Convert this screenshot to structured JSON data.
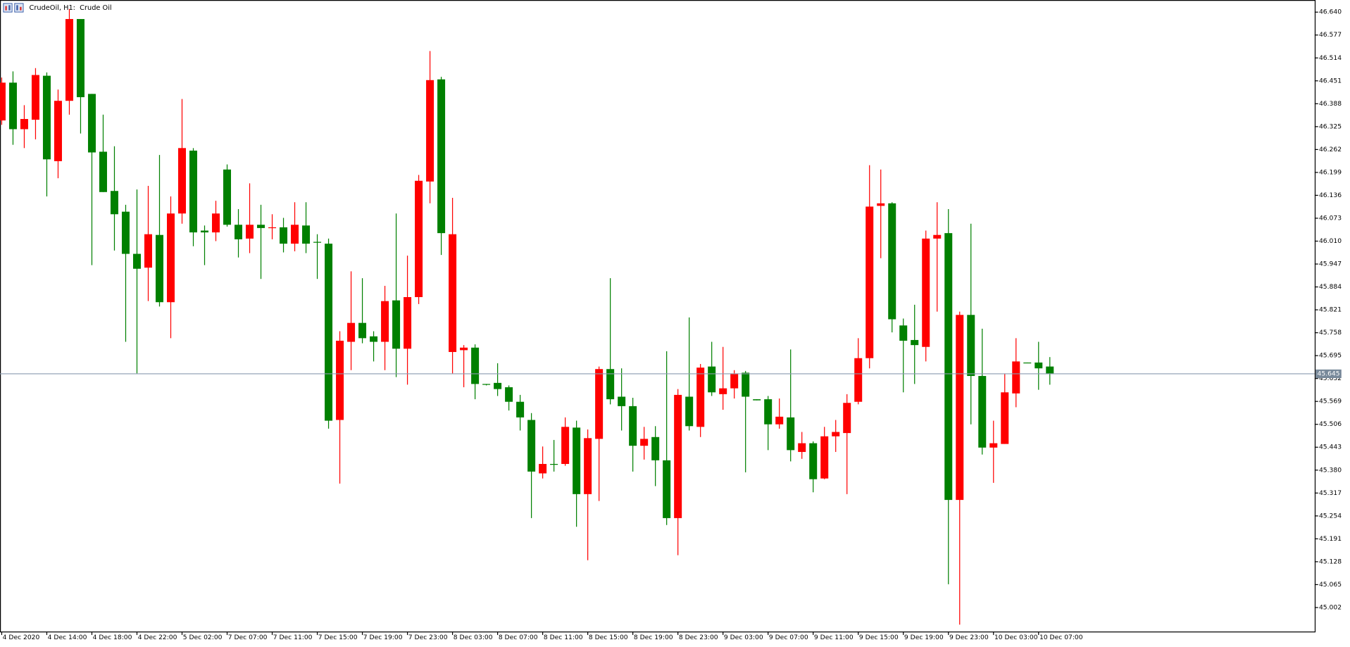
{
  "chart_data": {
    "type": "candlestick",
    "title": "CrudeOil, H1:  Crude Oil",
    "up_color": "#008000",
    "down_color": "#ff0000",
    "categories": [
      "4 Dec 2020",
      null,
      null,
      null,
      "4 Dec 14:00",
      null,
      null,
      null,
      "4 Dec 18:00",
      null,
      null,
      null,
      "4 Dec 22:00",
      null,
      null,
      null,
      "5 Dec 02:00",
      null,
      null,
      null,
      "7 Dec 07:00",
      null,
      null,
      null,
      "7 Dec 11:00",
      null,
      null,
      null,
      "7 Dec 15:00",
      null,
      null,
      null,
      "7 Dec 19:00",
      null,
      null,
      null,
      "7 Dec 23:00",
      null,
      null,
      null,
      "8 Dec 03:00",
      null,
      null,
      null,
      "8 Dec 07:00",
      null,
      null,
      null,
      "8 Dec 11:00",
      null,
      null,
      null,
      "8 Dec 15:00",
      null,
      null,
      null,
      "8 Dec 19:00",
      null,
      null,
      null,
      "8 Dec 23:00",
      null,
      null,
      null,
      "9 Dec 03:00",
      null,
      null,
      null,
      "9 Dec 07:00",
      null,
      null,
      null,
      "9 Dec 11:00",
      null,
      null,
      null,
      "9 Dec 15:00",
      null,
      null,
      null,
      "9 Dec 19:00",
      null,
      null,
      null,
      "9 Dec 23:00",
      null,
      null,
      null,
      "10 Dec 03:00",
      null,
      null,
      null,
      "10 Dec 07:00",
      null
    ],
    "open": [
      46.446,
      46.318,
      46.346,
      46.467,
      46.235,
      46.396,
      46.621,
      46.406,
      46.254,
      46.145,
      46.084,
      45.975,
      45.934,
      46.029,
      45.842,
      46.086,
      46.266,
      46.034,
      46.034,
      46.086,
      46.055,
      46.015,
      46.055,
      46.046,
      46.048,
      46.003,
      46.055,
      46.003,
      46.006,
      45.516,
      45.736,
      45.785,
      45.743,
      45.733,
      45.845,
      45.714,
      45.856,
      46.176,
      46.453,
      46.032,
      46.029,
      45.717,
      45.617,
      45.615,
      45.603,
      45.568,
      45.525,
      45.376,
      45.397,
      45.395,
      45.499,
      45.314,
      45.468,
      45.658,
      45.575,
      45.556,
      45.447,
      45.466,
      45.407,
      45.248,
      45.587,
      45.501,
      45.662,
      45.594,
      45.605,
      45.646,
      45.582,
      45.572,
      45.506,
      45.527,
      45.435,
      45.454,
      45.355,
      45.473,
      45.485,
      45.565,
      45.688,
      46.105,
      46.114,
      45.795,
      45.736,
      45.724,
      46.017,
      46.027,
      45.298,
      45.807,
      45.639,
      45.442,
      45.454,
      45.594,
      45.679,
      45.674,
      45.66,
      45.646
    ],
    "high": [
      46.46,
      46.477,
      46.384,
      46.486,
      46.474,
      46.427,
      46.649,
      46.621,
      46.415,
      46.358,
      46.271,
      46.11,
      46.152,
      46.162,
      46.247,
      46.133,
      46.401,
      46.266,
      46.053,
      46.121,
      46.221,
      46.098,
      46.169,
      46.11,
      46.084,
      46.074,
      46.117,
      46.117,
      46.029,
      46.017,
      45.762,
      45.927,
      45.908,
      45.762,
      45.887,
      46.086,
      45.97,
      46.192,
      46.533,
      46.462,
      46.129,
      45.724,
      45.726,
      45.617,
      45.674,
      45.613,
      45.587,
      45.537,
      45.445,
      45.463,
      45.525,
      45.516,
      45.492,
      45.665,
      45.908,
      45.66,
      45.579,
      45.499,
      45.501,
      45.707,
      45.603,
      45.8,
      45.672,
      45.733,
      45.719,
      45.655,
      45.653,
      45.575,
      45.584,
      45.577,
      45.712,
      45.485,
      45.459,
      45.499,
      45.518,
      45.589,
      45.743,
      46.219,
      46.207,
      46.117,
      45.797,
      45.835,
      46.039,
      46.117,
      46.098,
      45.816,
      46.058,
      45.769,
      45.516,
      45.646,
      45.743,
      45.676,
      45.733,
      45.691
    ],
    "low": [
      46.33,
      46.275,
      46.266,
      46.29,
      46.133,
      46.183,
      46.358,
      46.306,
      45.944,
      46.145,
      45.984,
      45.733,
      45.646,
      45.845,
      45.83,
      45.743,
      46.058,
      45.996,
      45.944,
      46.01,
      46.05,
      45.965,
      45.977,
      45.906,
      46.015,
      45.979,
      45.982,
      45.977,
      45.906,
      45.494,
      45.343,
      45.655,
      45.729,
      45.679,
      45.655,
      45.636,
      45.615,
      45.837,
      46.114,
      45.972,
      45.646,
      45.608,
      45.575,
      45.613,
      45.584,
      45.544,
      45.489,
      45.248,
      45.357,
      45.376,
      45.392,
      45.224,
      45.132,
      45.295,
      45.561,
      45.489,
      45.376,
      45.409,
      45.336,
      45.229,
      45.146,
      45.489,
      45.471,
      45.584,
      45.546,
      45.577,
      45.374,
      45.572,
      45.435,
      45.494,
      45.404,
      45.411,
      45.319,
      45.355,
      45.43,
      45.314,
      45.561,
      45.66,
      45.963,
      45.759,
      45.594,
      45.617,
      45.679,
      45.816,
      45.066,
      44.955,
      45.506,
      45.423,
      45.345,
      45.452,
      45.553,
      45.674,
      45.601,
      45.615
    ],
    "close": [
      46.342,
      46.446,
      46.318,
      46.344,
      46.465,
      46.23,
      46.396,
      46.621,
      46.415,
      46.256,
      46.148,
      46.091,
      45.975,
      45.937,
      46.027,
      45.842,
      46.086,
      46.259,
      46.039,
      46.034,
      46.207,
      46.055,
      46.017,
      46.055,
      46.046,
      46.048,
      46.003,
      46.053,
      46.008,
      46.003,
      45.518,
      45.733,
      45.785,
      45.748,
      45.733,
      45.847,
      45.714,
      45.856,
      46.174,
      46.455,
      45.705,
      45.71,
      45.717,
      45.617,
      45.62,
      45.608,
      45.568,
      45.518,
      45.371,
      45.397,
      45.397,
      45.497,
      45.314,
      45.466,
      45.658,
      45.582,
      45.556,
      45.447,
      45.471,
      45.407,
      45.248,
      45.582,
      45.499,
      45.665,
      45.589,
      45.605,
      45.648,
      45.575,
      45.575,
      45.506,
      45.525,
      45.43,
      45.454,
      45.357,
      45.473,
      45.482,
      45.568,
      45.688,
      46.107,
      46.114,
      45.778,
      45.738,
      45.719,
      46.017,
      46.032,
      45.298,
      45.807,
      45.639,
      45.442,
      45.452,
      45.591,
      45.676,
      45.676,
      45.665
    ],
    "ylim": [
      44.936,
      46.671
    ],
    "yticks": [
      {
        "value": 46.64,
        "label": "46.640"
      },
      46.577,
      46.514,
      46.451,
      46.388,
      46.325,
      46.262,
      46.199,
      46.136,
      46.073,
      {
        "value": 46.01,
        "label": "46.010"
      },
      45.947,
      45.884,
      45.821,
      45.758,
      45.695,
      45.632,
      45.569,
      45.506,
      45.443,
      {
        "value": 45.38,
        "label": "45.380"
      },
      45.317,
      45.254,
      45.191,
      45.128,
      45.065,
      45.002
    ],
    "current_price": 45.645
  }
}
